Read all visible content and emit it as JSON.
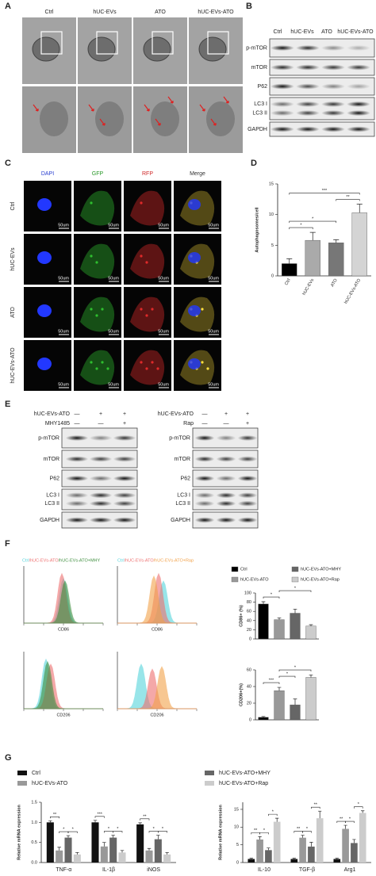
{
  "panel_labels": [
    "A",
    "B",
    "C",
    "D",
    "E",
    "F",
    "G"
  ],
  "panel_a": {
    "columns": [
      "Ctrl",
      "hUC-EVs",
      "ATO",
      "hUC-EVs-ATO"
    ]
  },
  "panel_b": {
    "columns": [
      "Ctrl",
      "hUC-EVs",
      "ATO",
      "hUC-EVs-ATO"
    ],
    "rows": [
      "p-mTOR",
      "mTOR",
      "P62",
      "LC3 I",
      "LC3 II",
      "GAPDH"
    ]
  },
  "panel_c": {
    "columns": [
      "DAPI",
      "GFP",
      "RFP",
      "Merge"
    ],
    "rows": [
      "Ctrl",
      "hUC-EVs",
      "ATO",
      "hUC-EVs-ATO"
    ],
    "scale": "50um"
  },
  "panel_e": {
    "left": {
      "treatments": [
        {
          "name": "hUC-EVs-ATO",
          "marks": [
            "—",
            "+",
            "+"
          ]
        },
        {
          "name": "MHY1485",
          "marks": [
            "—",
            "—",
            "+"
          ]
        }
      ],
      "rows": [
        "p-mTOR",
        "mTOR",
        "P62",
        "LC3 I",
        "LC3 II",
        "GAPDH"
      ]
    },
    "right": {
      "treatments": [
        {
          "name": "hUC-EVs-ATO",
          "marks": [
            "—",
            "+",
            "+"
          ]
        },
        {
          "name": "Rap",
          "marks": [
            "—",
            "—",
            "+"
          ]
        }
      ],
      "rows": [
        "p-mTOR",
        "mTOR",
        "P62",
        "LC3 I",
        "LC3 II",
        "GAPDH"
      ]
    }
  },
  "panel_f": {
    "hist_legends": [
      [
        "Ctrl",
        "/hUC-EVs-ATO",
        "/hUC-EVs-ATO+MHY"
      ],
      [
        "Ctrl",
        "/hUC-EVs-ATO",
        "/hUC-EVs-ATO+Rap"
      ]
    ],
    "hist_axes": [
      "CD86",
      "CD86",
      "CD206",
      "CD206"
    ],
    "legend": [
      {
        "name": "Ctrl",
        "color": "#000000"
      },
      {
        "name": "hUC-EVs-ATO",
        "color": "#999999"
      },
      {
        "name": "hUC-EVs-ATO+MHY",
        "color": "#666666"
      },
      {
        "name": "hUC-EVs-ATO+Rap",
        "color": "#cccccc"
      }
    ]
  },
  "chart_data": [
    {
      "type": "bar",
      "ylabel": "Autophagosomes/cell",
      "categories": [
        "Ctrl",
        "hUC-EVs",
        "ATO",
        "hUC-EVs-ATO"
      ],
      "values": [
        2.0,
        5.8,
        5.4,
        10.3
      ],
      "errors": [
        0.8,
        1.3,
        0.5,
        1.4
      ],
      "colors": [
        "#000000",
        "#aaaaaa",
        "#777777",
        "#d4d4d4"
      ],
      "ylim": [
        0,
        15
      ],
      "yticks": [
        0,
        5,
        10,
        15
      ],
      "comparisons": [
        {
          "between": [
            0,
            1
          ],
          "label": "*"
        },
        {
          "between": [
            0,
            2
          ],
          "label": "*"
        },
        {
          "between": [
            2,
            3
          ],
          "label": "**"
        },
        {
          "between": [
            0,
            3
          ],
          "label": "***"
        }
      ]
    },
    {
      "type": "bar",
      "ylabel": "CD86+ (%)",
      "categories": [
        null,
        null,
        null,
        null
      ],
      "values": [
        76,
        42,
        56,
        28
      ],
      "errors": [
        5,
        4,
        9,
        3
      ],
      "colors": [
        "#000000",
        "#999999",
        "#666666",
        "#cccccc"
      ],
      "ylim": [
        0,
        100
      ],
      "yticks": [
        0,
        20,
        40,
        60,
        80,
        100
      ],
      "comparisons": [
        {
          "between": [
            0,
            1
          ],
          "label": "*"
        },
        {
          "between": [
            1,
            3
          ],
          "label": "*"
        }
      ]
    },
    {
      "type": "bar",
      "ylabel": "CD206+(%)",
      "categories": [
        null,
        null,
        null,
        null
      ],
      "values": [
        3,
        35,
        18,
        51
      ],
      "errors": [
        1,
        4,
        7,
        3
      ],
      "colors": [
        "#000000",
        "#999999",
        "#666666",
        "#cccccc"
      ],
      "ylim": [
        0,
        60
      ],
      "yticks": [
        0,
        20,
        40,
        60
      ],
      "comparisons": [
        {
          "between": [
            0,
            1
          ],
          "label": "***"
        },
        {
          "between": [
            1,
            2
          ],
          "label": "*"
        },
        {
          "between": [
            1,
            3
          ],
          "label": "*"
        }
      ]
    },
    {
      "type": "grouped-bar",
      "ylabel": "Relative mRNA expression",
      "categories": [
        "TNF-α",
        "IL-1β",
        "iNOS"
      ],
      "series": [
        {
          "name": "Ctrl",
          "color": "#111111",
          "values": [
            1.0,
            1.0,
            0.95
          ],
          "errors": [
            0.04,
            0.05,
            0.04
          ]
        },
        {
          "name": "hUC-EVs-ATO",
          "color": "#999999",
          "values": [
            0.3,
            0.4,
            0.3
          ],
          "errors": [
            0.08,
            0.1,
            0.05
          ]
        },
        {
          "name": "hUC-EVs-ATO+MHY",
          "color": "#666666",
          "values": [
            0.62,
            0.62,
            0.58
          ],
          "errors": [
            0.05,
            0.06,
            0.1
          ]
        },
        {
          "name": "hUC-EVs-ATO+Rap",
          "color": "#cccccc",
          "values": [
            0.2,
            0.25,
            0.2
          ],
          "errors": [
            0.05,
            0.05,
            0.05
          ]
        }
      ],
      "ylim": [
        0,
        1.5
      ],
      "yticks": [
        {
          "value": 0,
          "label": "0.0"
        },
        0.5,
        {
          "value": 1,
          "label": "1.0"
        },
        1.5
      ],
      "comparisons": [
        {
          "category": 0,
          "between": [
            0,
            1
          ],
          "label": "**"
        },
        {
          "category": 0,
          "between": [
            1,
            2
          ],
          "label": "*"
        },
        {
          "category": 0,
          "between": [
            2,
            3
          ],
          "label": "*"
        },
        {
          "category": 1,
          "between": [
            0,
            1
          ],
          "label": "***"
        },
        {
          "category": 1,
          "between": [
            1,
            2
          ],
          "label": "*"
        },
        {
          "category": 1,
          "between": [
            2,
            3
          ],
          "label": "*"
        },
        {
          "category": 2,
          "between": [
            0,
            1
          ],
          "label": "**"
        },
        {
          "category": 2,
          "between": [
            1,
            2
          ],
          "label": "*"
        },
        {
          "category": 2,
          "between": [
            2,
            3
          ],
          "label": "*"
        }
      ]
    },
    {
      "type": "grouped-bar",
      "ylabel": "Relative mRNA expression",
      "categories": [
        "IL-10",
        "TGF-β",
        "Arg1"
      ],
      "series": [
        {
          "color": "#111111",
          "values": [
            1,
            1,
            1
          ],
          "errors": [
            0.2,
            0.2,
            0.2
          ]
        },
        {
          "color": "#999999",
          "values": [
            6.5,
            7,
            9.5
          ],
          "errors": [
            0.8,
            0.7,
            1.0
          ]
        },
        {
          "color": "#666666",
          "values": [
            3.5,
            4.5,
            5.5
          ],
          "errors": [
            0.6,
            1.2,
            1.0
          ]
        },
        {
          "color": "#cccccc",
          "values": [
            11.5,
            12.5,
            14
          ],
          "errors": [
            1.0,
            2.0,
            0.6
          ]
        }
      ],
      "ylim": [
        0,
        17
      ],
      "yticks": [
        0,
        5,
        10,
        15
      ],
      "comparisons": [
        {
          "category": 0,
          "between": [
            0,
            1
          ],
          "label": "**"
        },
        {
          "category": 0,
          "between": [
            1,
            2
          ],
          "label": "*"
        },
        {
          "category": 0,
          "between": [
            2,
            3
          ],
          "label": "*"
        },
        {
          "category": 1,
          "between": [
            0,
            1
          ],
          "label": "**"
        },
        {
          "category": 1,
          "between": [
            1,
            2
          ],
          "label": "*"
        },
        {
          "category": 1,
          "between": [
            2,
            3
          ],
          "label": "**"
        },
        {
          "category": 2,
          "between": [
            0,
            1
          ],
          "label": "**"
        },
        {
          "category": 2,
          "between": [
            1,
            2
          ],
          "label": "*"
        },
        {
          "category": 2,
          "between": [
            2,
            3
          ],
          "label": "*"
        }
      ]
    }
  ]
}
